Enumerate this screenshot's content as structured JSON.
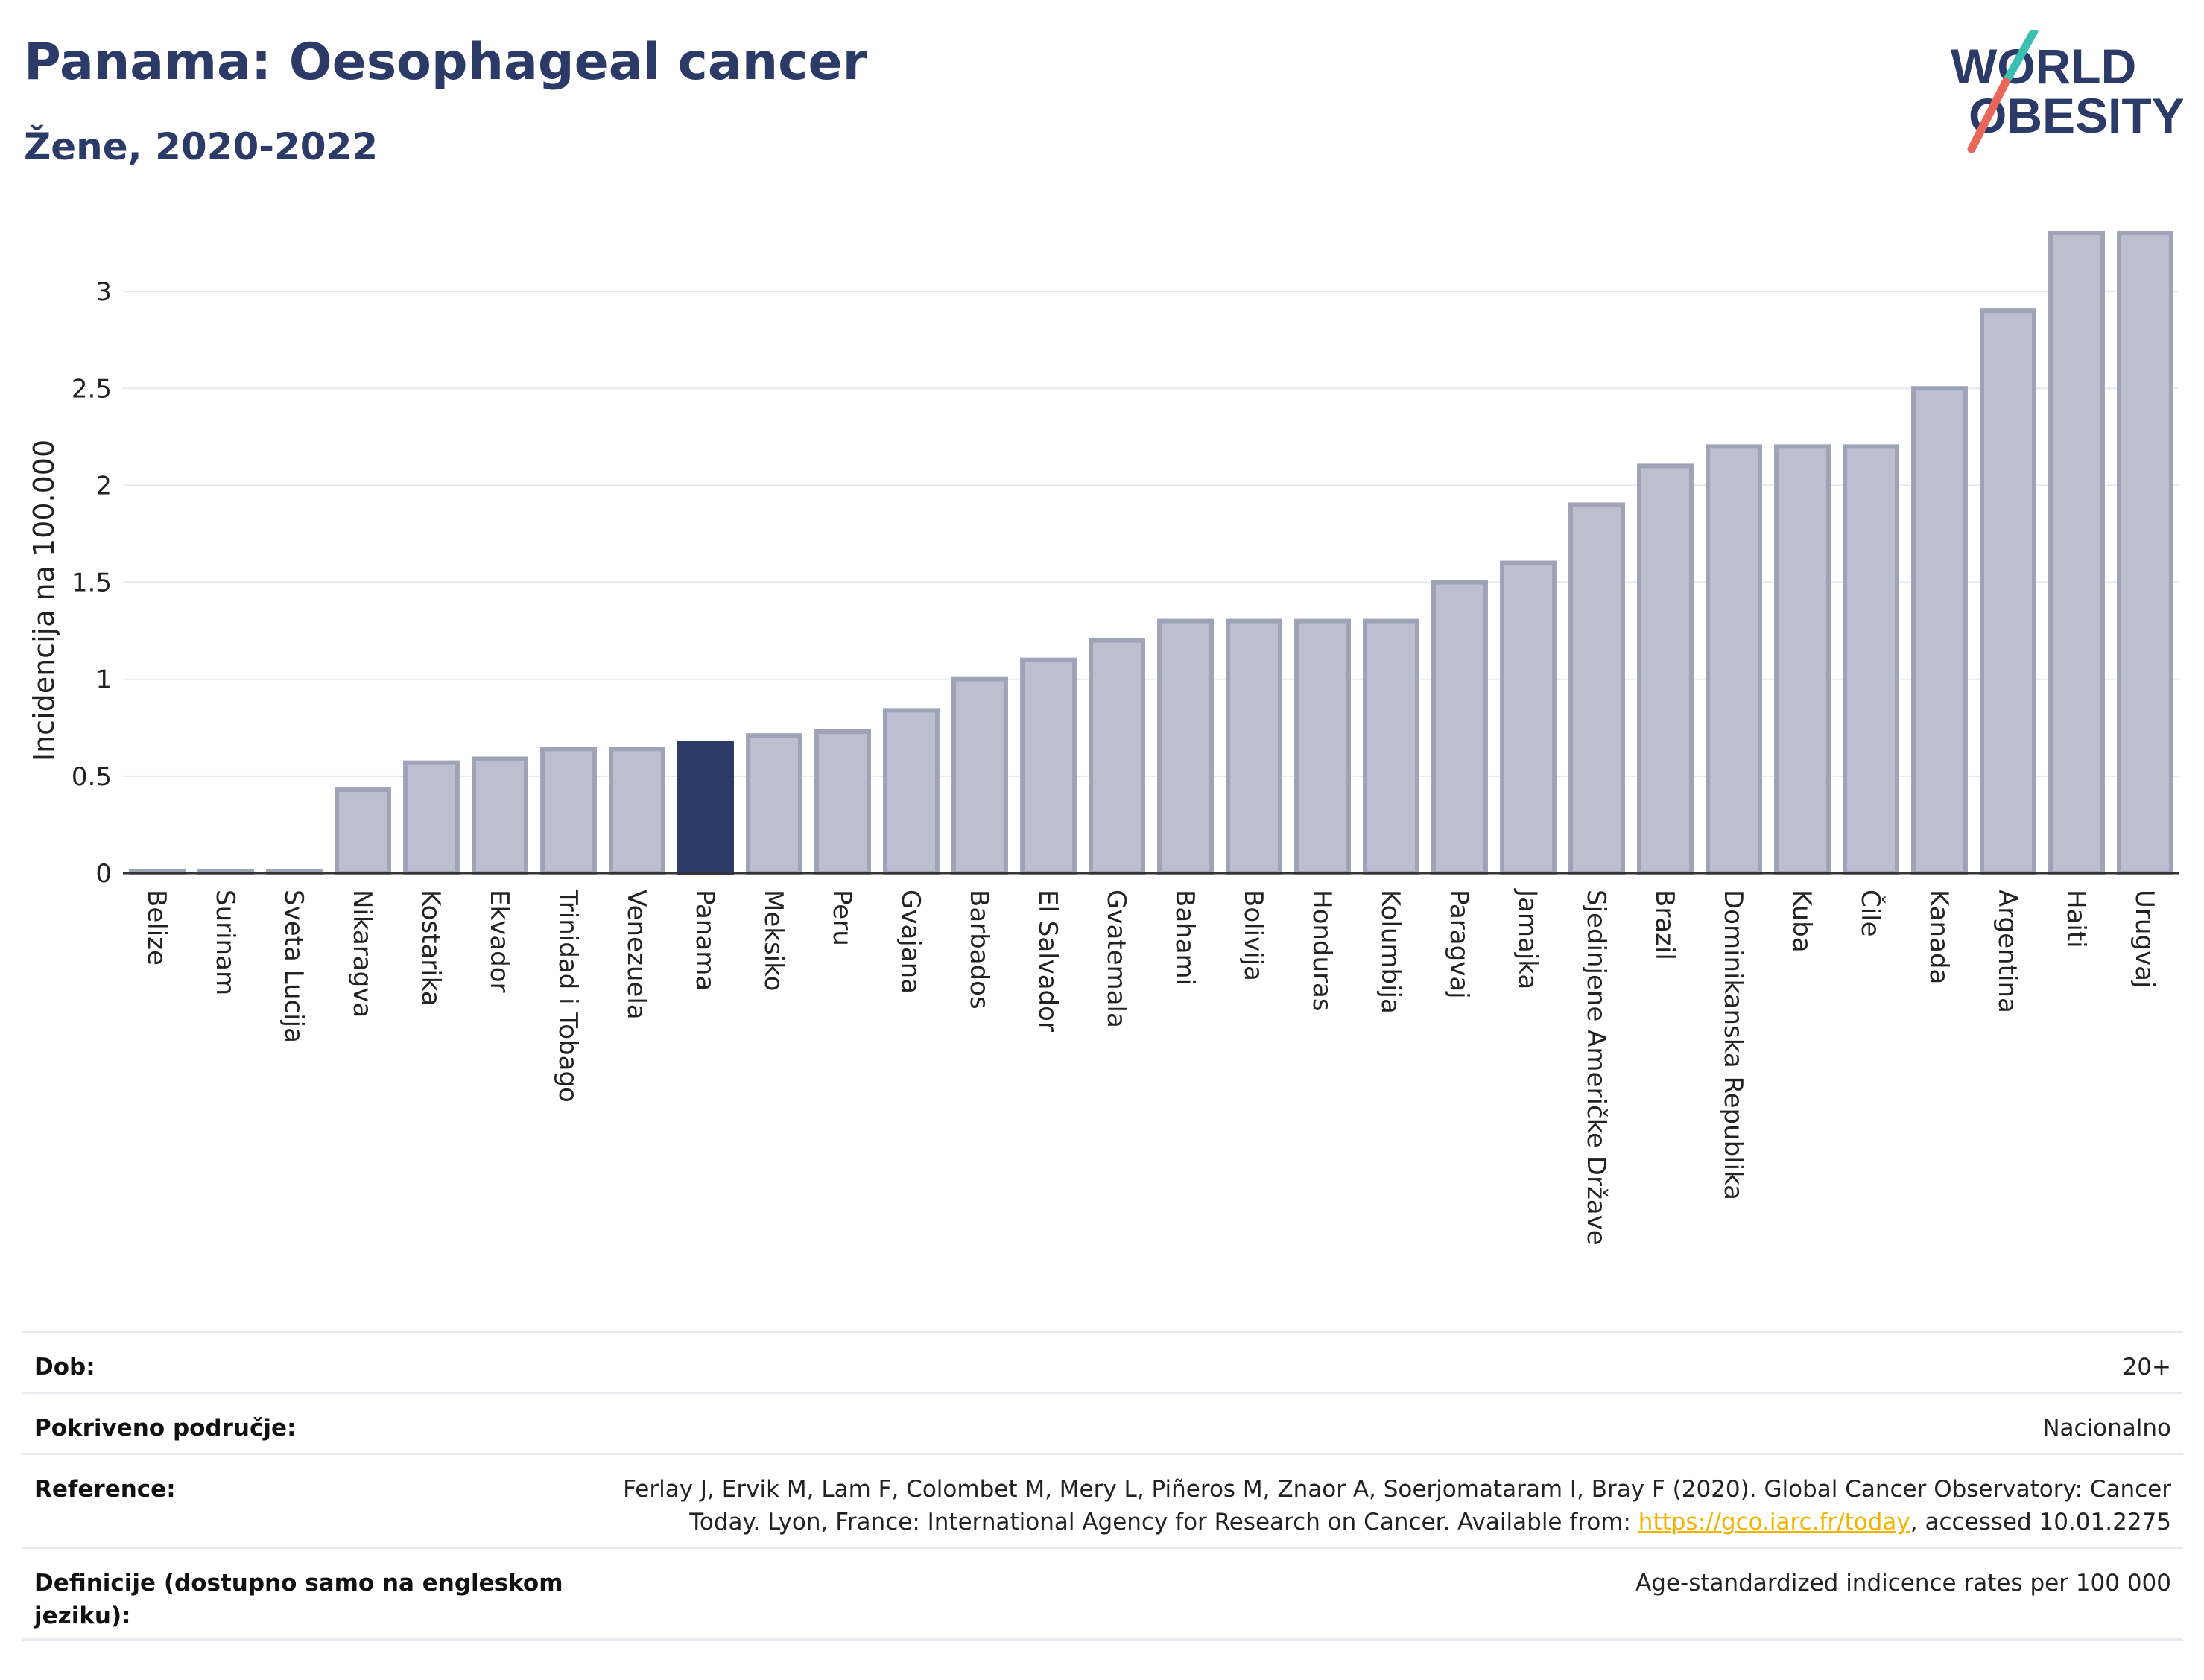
{
  "header": {
    "title": "Panama: Oesophageal cancer",
    "subtitle": "Žene, 2020-2022",
    "logo_line1": "WORLD",
    "logo_line2": "OBESITY"
  },
  "colors": {
    "bar_default": "#bcc0ce",
    "bar_default_border": "#9ea3b8",
    "bar_highlight": "#2b3a67",
    "title": "#2b3a67",
    "logo_teal": "#3bbfb0",
    "logo_red": "#e8665a",
    "link": "#f0b400"
  },
  "chart_data": {
    "type": "bar",
    "title": "",
    "xlabel": "",
    "ylabel": "Incidencija na 100.000",
    "ylim": [
      0,
      3.35
    ],
    "yticks": [
      0,
      0.5,
      1,
      1.5,
      2,
      2.5,
      3
    ],
    "ytick_labels": [
      "0",
      "0.5",
      "1",
      "1.5",
      "2",
      "2.5",
      "3"
    ],
    "grid": true,
    "highlight": "Panama",
    "categories": [
      "Belize",
      "Surinam",
      "Sveta Lucija",
      "Nikaragva",
      "Kostarika",
      "Ekvador",
      "Trinidad i Tobago",
      "Venezuela",
      "Panama",
      "Meksiko",
      "Peru",
      "Gvajana",
      "Barbados",
      "El Salvador",
      "Gvatemala",
      "Bahami",
      "Bolivija",
      "Honduras",
      "Kolumbija",
      "Paragvaj",
      "Jamajka",
      "Sjedinjene Američke Države",
      "Brazil",
      "Dominikanska Republika",
      "Kuba",
      "Čile",
      "Kanada",
      "Argentina",
      "Haiti",
      "Urugvaj"
    ],
    "values": [
      0.01,
      0.01,
      0.01,
      0.43,
      0.57,
      0.59,
      0.64,
      0.64,
      0.67,
      0.71,
      0.73,
      0.84,
      1.0,
      1.1,
      1.2,
      1.3,
      1.3,
      1.3,
      1.3,
      1.5,
      1.6,
      1.9,
      2.1,
      2.2,
      2.2,
      2.2,
      2.5,
      2.9,
      3.3,
      3.3
    ]
  },
  "meta": {
    "rows": [
      {
        "label": "Dob:",
        "value": "20+"
      },
      {
        "label": "Pokriveno područje:",
        "value": "Nacionalno"
      },
      {
        "label": "Reference:",
        "value_line1": "Ferlay J, Ervik M, Lam F, Colombet M, Mery L, Piñeros M, Znaor A, Soerjomataram I, Bray F (2020). Global Cancer Observatory: Cancer",
        "value_line2_pre": "Today. Lyon, France: International Agency for Research on Cancer. Available from: ",
        "value_link": "https://gco.iarc.fr/today",
        "value_line2_post": ", accessed 10.01.2275"
      },
      {
        "label": "Definicije (dostupno samo na engleskom jeziku):",
        "value": "Age-standardized indicence rates per 100 000"
      }
    ]
  }
}
